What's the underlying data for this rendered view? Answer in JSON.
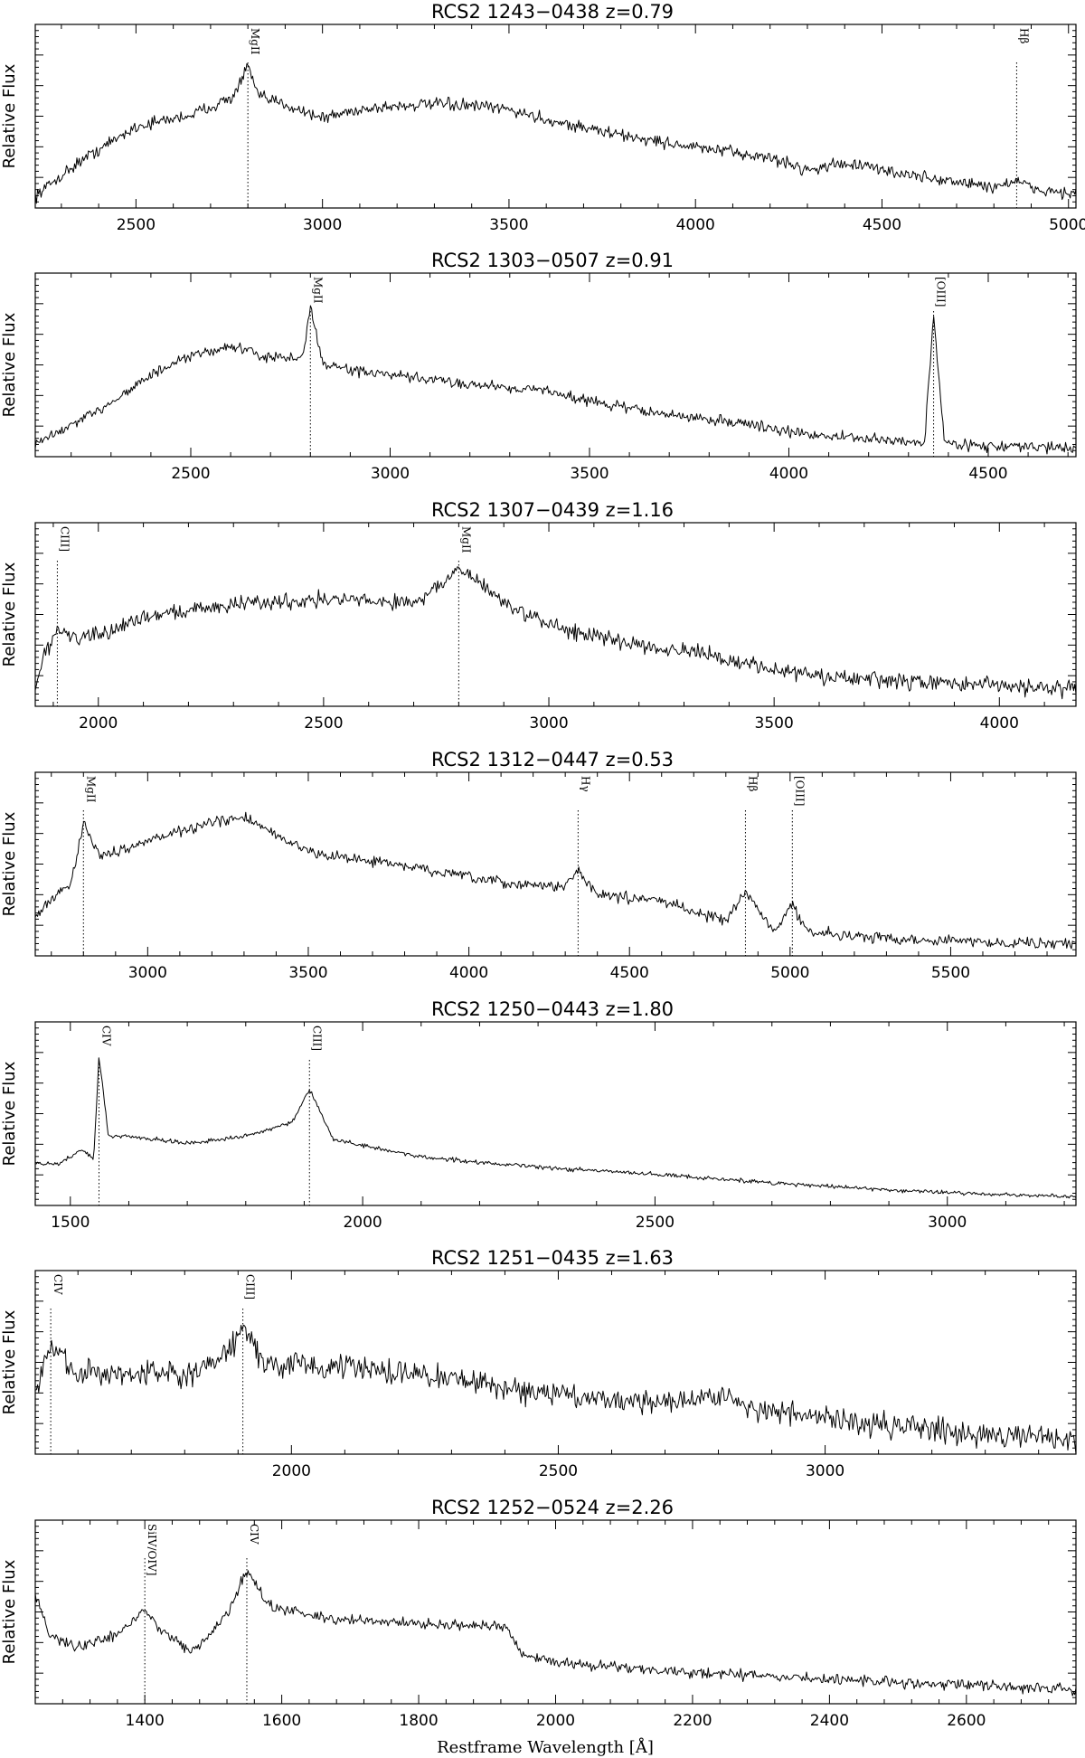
{
  "figure": {
    "xlabel": "Restframe Wavelength [Å]",
    "ylabel": "Relative Flux"
  },
  "chart_data": [
    {
      "type": "line",
      "title": "RCS2  1243−0438  z=0.79",
      "ylabel": "Relative Flux",
      "xlim": [
        2230,
        5020
      ],
      "xticks": [
        2500,
        3000,
        3500,
        4000,
        4500,
        5000
      ],
      "lines": [
        {
          "name": "MgII",
          "x": 2800
        },
        {
          "name": "Hβ",
          "x": 4861
        }
      ],
      "series": [
        {
          "x": [
            2230,
            2350,
            2500,
            2650,
            2760,
            2800,
            2830,
            2900,
            3000,
            3100,
            3200,
            3300,
            3400,
            3500,
            3600,
            3800,
            4000,
            4200,
            4300,
            4400,
            4600,
            4800,
            4861,
            4900,
            5020
          ],
          "y": [
            0.05,
            0.25,
            0.45,
            0.52,
            0.62,
            0.8,
            0.62,
            0.58,
            0.5,
            0.55,
            0.57,
            0.58,
            0.57,
            0.55,
            0.49,
            0.4,
            0.33,
            0.27,
            0.2,
            0.24,
            0.16,
            0.1,
            0.14,
            0.09,
            0.06
          ]
        }
      ]
    },
    {
      "type": "line",
      "title": "RCS2  1303−0507  z=0.91",
      "ylabel": "Relative Flux",
      "xlim": [
        2110,
        4720
      ],
      "xticks": [
        2500,
        3000,
        3500,
        4000,
        4500
      ],
      "lines": [
        {
          "name": "MgII",
          "x": 2800
        },
        {
          "name": "[OIII]",
          "x": 4363
        }
      ],
      "series": [
        {
          "x": [
            2110,
            2250,
            2400,
            2500,
            2600,
            2700,
            2780,
            2800,
            2830,
            2900,
            3000,
            3200,
            3400,
            3500,
            3700,
            3900,
            4000,
            4200,
            4340,
            4363,
            4390,
            4500,
            4720
          ],
          "y": [
            0.05,
            0.22,
            0.45,
            0.56,
            0.62,
            0.55,
            0.55,
            0.85,
            0.52,
            0.48,
            0.45,
            0.4,
            0.36,
            0.3,
            0.22,
            0.17,
            0.12,
            0.08,
            0.06,
            0.8,
            0.06,
            0.04,
            0.03
          ]
        }
      ]
    },
    {
      "type": "line",
      "title": "RCS2  1307−0439  z=1.16",
      "ylabel": "Relative Flux",
      "xlim": [
        1860,
        4170
      ],
      "xticks": [
        2000,
        2500,
        3000,
        3500,
        4000
      ],
      "lines": [
        {
          "name": "CIII]",
          "x": 1909
        },
        {
          "name": "MgII",
          "x": 2800
        }
      ],
      "series": [
        {
          "x": [
            1860,
            1880,
            1909,
            1950,
            2000,
            2100,
            2300,
            2500,
            2700,
            2780,
            2800,
            2850,
            2950,
            3100,
            3300,
            3450,
            3600,
            3800,
            4000,
            4170
          ],
          "y": [
            0.08,
            0.28,
            0.42,
            0.38,
            0.38,
            0.5,
            0.57,
            0.6,
            0.58,
            0.72,
            0.78,
            0.68,
            0.5,
            0.38,
            0.3,
            0.22,
            0.15,
            0.12,
            0.1,
            0.08
          ]
        }
      ]
    },
    {
      "type": "line",
      "title": "RCS2  1312−0447  z=0.53",
      "ylabel": "Relative Flux",
      "xlim": [
        2650,
        5890
      ],
      "xticks": [
        3000,
        3500,
        4000,
        4500,
        5000,
        5500
      ],
      "lines": [
        {
          "name": "MgII",
          "x": 2800
        },
        {
          "name": "Hγ",
          "x": 4340
        },
        {
          "name": "Hβ",
          "x": 4861
        },
        {
          "name": "[OIII]",
          "x": 5007
        }
      ],
      "series": [
        {
          "x": [
            2650,
            2760,
            2800,
            2850,
            3000,
            3200,
            3300,
            3500,
            3800,
            4100,
            4300,
            4340,
            4400,
            4600,
            4800,
            4861,
            4950,
            5007,
            5050,
            5300,
            5600,
            5890
          ],
          "y": [
            0.22,
            0.4,
            0.75,
            0.55,
            0.65,
            0.75,
            0.78,
            0.58,
            0.5,
            0.4,
            0.38,
            0.48,
            0.33,
            0.3,
            0.18,
            0.35,
            0.12,
            0.28,
            0.12,
            0.08,
            0.06,
            0.05
          ]
        }
      ]
    },
    {
      "type": "line",
      "title": "RCS2  1250−0443  z=1.80",
      "ylabel": "Relative Flux",
      "xlim": [
        1440,
        3220
      ],
      "xticks": [
        1500,
        2000,
        2500,
        3000
      ],
      "lines": [
        {
          "name": "CIV",
          "x": 1549
        },
        {
          "name": "CIII]",
          "x": 1909
        }
      ],
      "series": [
        {
          "x": [
            1440,
            1480,
            1520,
            1540,
            1549,
            1565,
            1600,
            1700,
            1800,
            1880,
            1909,
            1950,
            2100,
            2300,
            2500,
            2700,
            2900,
            3100,
            3220
          ],
          "y": [
            0.22,
            0.22,
            0.3,
            0.25,
            0.85,
            0.38,
            0.38,
            0.34,
            0.38,
            0.46,
            0.65,
            0.36,
            0.26,
            0.2,
            0.16,
            0.11,
            0.07,
            0.04,
            0.03
          ]
        }
      ]
    },
    {
      "type": "line",
      "title": "RCS2  1251−0435  z=1.63",
      "ylabel": "Relative Flux",
      "xlim": [
        1520,
        3470
      ],
      "xticks": [
        2000,
        2500,
        3000
      ],
      "lines": [
        {
          "name": "CIV",
          "x": 1549
        },
        {
          "name": "CIII]",
          "x": 1909
        }
      ],
      "series": [
        {
          "x": [
            1520,
            1549,
            1600,
            1700,
            1800,
            1880,
            1909,
            1950,
            2100,
            2300,
            2500,
            2700,
            2800,
            2900,
            3100,
            3300,
            3470
          ],
          "y": [
            0.35,
            0.6,
            0.45,
            0.45,
            0.42,
            0.55,
            0.72,
            0.5,
            0.48,
            0.42,
            0.32,
            0.28,
            0.32,
            0.22,
            0.15,
            0.1,
            0.07
          ]
        }
      ]
    },
    {
      "type": "line",
      "title": "RCS2  1252−0524  z=2.26",
      "xlabel": "Restframe Wavelength [Å]",
      "ylabel": "Relative Flux",
      "xlim": [
        1240,
        2760
      ],
      "xticks": [
        1400,
        1600,
        1800,
        2000,
        2200,
        2400,
        2600
      ],
      "lines": [
        {
          "name": "SiIV/OIV]",
          "x": 1400
        },
        {
          "name": "CIV",
          "x": 1549
        }
      ],
      "series": [
        {
          "x": [
            1240,
            1260,
            1300,
            1360,
            1400,
            1430,
            1470,
            1520,
            1549,
            1580,
            1650,
            1800,
            1930,
            1950,
            2000,
            2200,
            2400,
            2600,
            2760
          ],
          "y": [
            0.62,
            0.38,
            0.3,
            0.38,
            0.52,
            0.38,
            0.28,
            0.5,
            0.75,
            0.55,
            0.48,
            0.44,
            0.42,
            0.26,
            0.22,
            0.16,
            0.12,
            0.09,
            0.06
          ]
        }
      ]
    }
  ]
}
